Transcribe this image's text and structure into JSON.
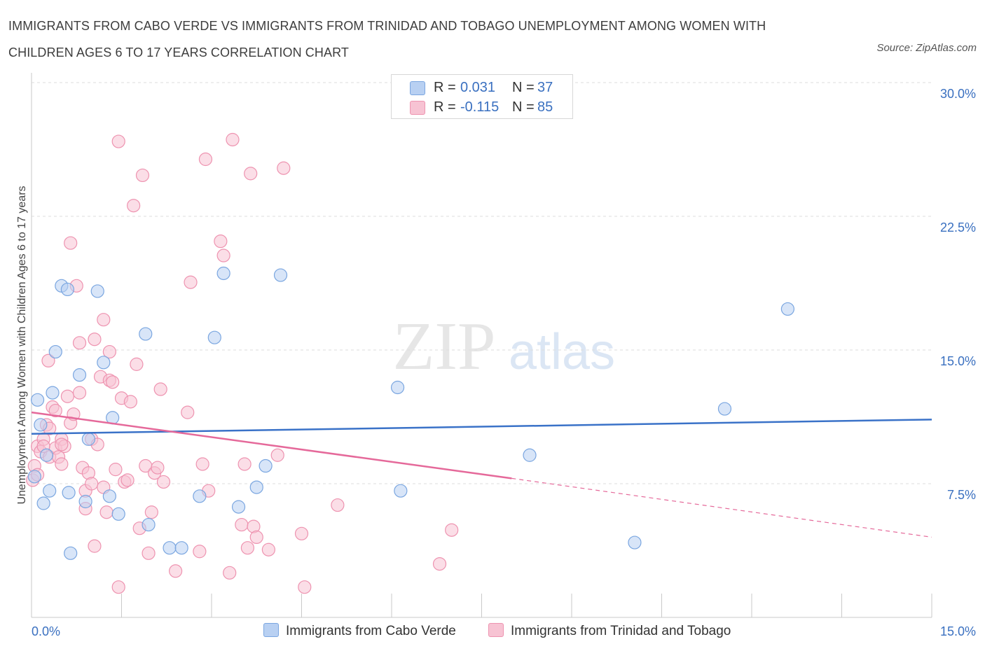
{
  "title": "IMMIGRANTS FROM CABO VERDE VS IMMIGRANTS FROM TRINIDAD AND TOBAGO UNEMPLOYMENT AMONG WOMEN WITH CHILDREN AGES 6 TO 17 YEARS CORRELATION CHART",
  "source": "Source: ZipAtlas.com",
  "watermark": {
    "zip": "ZIP",
    "atlas": "atlas"
  },
  "colors": {
    "blue_fill": "#b8d0f2",
    "blue_stroke": "#7aa6e0",
    "blue_line": "#3a72c8",
    "pink_fill": "#f7c3d3",
    "pink_stroke": "#ee93b0",
    "pink_line": "#e5699a",
    "axis_label": "#3a70c0",
    "grid": "#dddddd"
  },
  "legend": [
    {
      "r_label": "R =",
      "r_value": "0.031",
      "n_label": "N =",
      "n_value": "37"
    },
    {
      "r_label": "R =",
      "r_value": "-0.115",
      "n_label": "N =",
      "n_value": "85"
    }
  ],
  "chart_data": {
    "type": "scatter",
    "ylabel": "Unemployment Among Women with Children Ages 6 to 17 years",
    "xlim": [
      0,
      15
    ],
    "ylim": [
      0,
      30
    ],
    "x_tick_labels": [
      "0.0%",
      "15.0%"
    ],
    "y_ticks": [
      7.5,
      15,
      22.5,
      30
    ],
    "y_tick_labels": [
      "7.5%",
      "15.0%",
      "22.5%",
      "30.0%"
    ],
    "grid": "horizontal dashed",
    "legend_position": "top-center",
    "series": [
      {
        "name": "Immigrants from Cabo Verde",
        "color": "blue",
        "trend": {
          "x": [
            0,
            15
          ],
          "y": [
            10.3,
            11.1
          ]
        },
        "points": [
          [
            0.05,
            7.9
          ],
          [
            0.1,
            12.2
          ],
          [
            0.15,
            10.8
          ],
          [
            0.2,
            6.4
          ],
          [
            0.25,
            9.1
          ],
          [
            0.3,
            7.1
          ],
          [
            0.35,
            12.6
          ],
          [
            0.4,
            14.9
          ],
          [
            0.5,
            18.6
          ],
          [
            0.6,
            18.4
          ],
          [
            0.62,
            7.0
          ],
          [
            0.65,
            3.6
          ],
          [
            0.8,
            13.6
          ],
          [
            0.9,
            6.5
          ],
          [
            0.95,
            10.0
          ],
          [
            1.1,
            18.3
          ],
          [
            1.2,
            14.3
          ],
          [
            1.3,
            6.8
          ],
          [
            1.35,
            11.2
          ],
          [
            1.45,
            5.8
          ],
          [
            1.9,
            15.9
          ],
          [
            1.95,
            5.2
          ],
          [
            2.3,
            3.9
          ],
          [
            2.5,
            3.9
          ],
          [
            2.8,
            6.8
          ],
          [
            3.05,
            15.7
          ],
          [
            3.2,
            19.3
          ],
          [
            3.45,
            6.2
          ],
          [
            3.75,
            7.3
          ],
          [
            3.9,
            8.5
          ],
          [
            4.15,
            19.2
          ],
          [
            6.1,
            12.9
          ],
          [
            6.15,
            7.1
          ],
          [
            8.3,
            9.1
          ],
          [
            10.05,
            4.2
          ],
          [
            11.55,
            11.7
          ],
          [
            12.6,
            17.3
          ]
        ]
      },
      {
        "name": "Immigrants from Trinidad and Tobago",
        "color": "pink",
        "trend": {
          "x": [
            0,
            8.0
          ],
          "y": [
            11.5,
            7.8
          ]
        },
        "trend_dashed": {
          "x": [
            8.0,
            15
          ],
          "y": [
            7.8,
            4.5
          ]
        },
        "points": [
          [
            0.02,
            7.7
          ],
          [
            0.05,
            8.5
          ],
          [
            0.1,
            9.6
          ],
          [
            0.15,
            9.3
          ],
          [
            0.2,
            10.0
          ],
          [
            0.25,
            10.8
          ],
          [
            0.28,
            14.4
          ],
          [
            0.3,
            9.0
          ],
          [
            0.35,
            11.8
          ],
          [
            0.4,
            9.5
          ],
          [
            0.45,
            9.0
          ],
          [
            0.5,
            8.6
          ],
          [
            0.5,
            10.0
          ],
          [
            0.55,
            9.6
          ],
          [
            0.6,
            12.4
          ],
          [
            0.65,
            10.9
          ],
          [
            0.65,
            21.0
          ],
          [
            0.7,
            11.4
          ],
          [
            0.75,
            18.6
          ],
          [
            0.8,
            12.6
          ],
          [
            0.8,
            15.4
          ],
          [
            0.85,
            8.4
          ],
          [
            0.9,
            7.1
          ],
          [
            0.9,
            6.1
          ],
          [
            0.95,
            8.1
          ],
          [
            1.0,
            7.5
          ],
          [
            1.0,
            10.0
          ],
          [
            1.05,
            15.6
          ],
          [
            1.05,
            4.0
          ],
          [
            1.1,
            9.7
          ],
          [
            1.15,
            13.5
          ],
          [
            1.2,
            16.7
          ],
          [
            1.2,
            7.3
          ],
          [
            1.25,
            5.9
          ],
          [
            1.3,
            14.9
          ],
          [
            1.3,
            13.3
          ],
          [
            1.35,
            13.2
          ],
          [
            1.4,
            8.3
          ],
          [
            1.45,
            26.7
          ],
          [
            1.45,
            1.7
          ],
          [
            1.5,
            12.3
          ],
          [
            1.55,
            7.6
          ],
          [
            1.6,
            7.7
          ],
          [
            1.65,
            12.1
          ],
          [
            1.7,
            23.1
          ],
          [
            1.75,
            14.2
          ],
          [
            1.8,
            5.0
          ],
          [
            1.85,
            24.8
          ],
          [
            1.9,
            8.5
          ],
          [
            1.95,
            3.6
          ],
          [
            2.0,
            5.9
          ],
          [
            2.05,
            8.1
          ],
          [
            2.1,
            8.4
          ],
          [
            2.15,
            12.8
          ],
          [
            2.2,
            7.6
          ],
          [
            2.4,
            2.6
          ],
          [
            2.6,
            11.5
          ],
          [
            2.65,
            18.8
          ],
          [
            2.8,
            3.7
          ],
          [
            2.85,
            8.6
          ],
          [
            2.9,
            25.7
          ],
          [
            2.95,
            7.1
          ],
          [
            3.15,
            21.1
          ],
          [
            3.2,
            20.3
          ],
          [
            3.3,
            2.5
          ],
          [
            3.35,
            26.8
          ],
          [
            3.5,
            5.2
          ],
          [
            3.55,
            8.6
          ],
          [
            3.6,
            3.9
          ],
          [
            3.65,
            24.9
          ],
          [
            3.7,
            5.1
          ],
          [
            3.75,
            4.5
          ],
          [
            3.95,
            3.8
          ],
          [
            4.1,
            9.1
          ],
          [
            4.2,
            25.2
          ],
          [
            4.5,
            4.7
          ],
          [
            4.55,
            1.7
          ],
          [
            5.1,
            6.3
          ],
          [
            6.8,
            3.0
          ],
          [
            7.0,
            4.9
          ],
          [
            0.5,
            9.7
          ],
          [
            0.4,
            11.6
          ],
          [
            0.3,
            10.6
          ],
          [
            0.2,
            9.6
          ],
          [
            0.1,
            8.0
          ]
        ]
      }
    ]
  }
}
